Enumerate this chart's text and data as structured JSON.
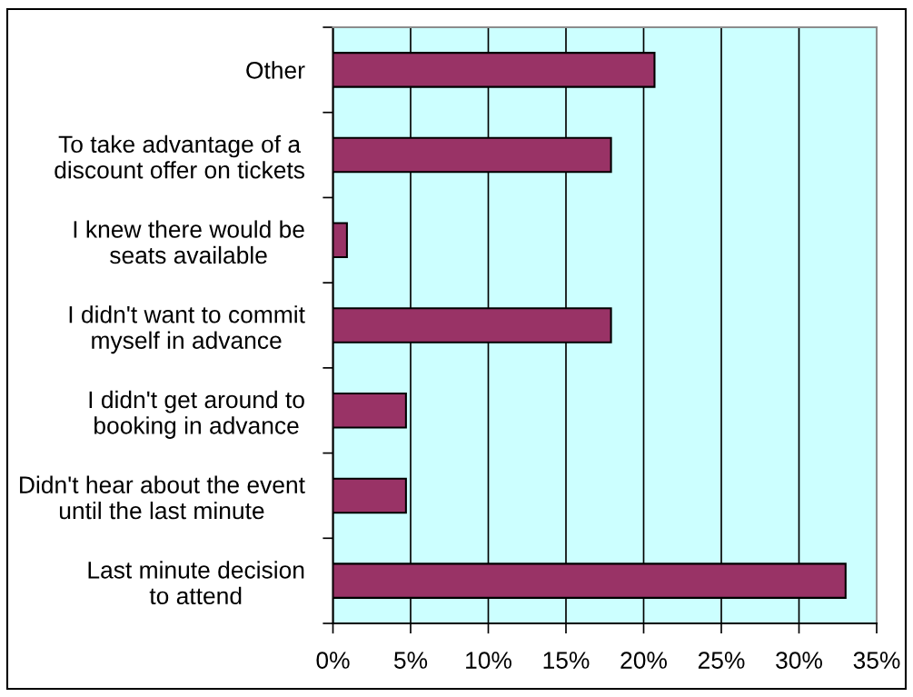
{
  "chart_data": {
    "type": "bar",
    "orientation": "horizontal",
    "categories": [
      "Other",
      "To take advantage of a\ndiscount offer on tickets",
      "I knew there would be\nseats available",
      "I didn't want to commit\nmyself in advance",
      "I didn't get around to\nbooking in advance",
      "Didn't hear about the event\nuntil the last minute",
      "Last minute decision\nto attend"
    ],
    "values": [
      20.7,
      17.9,
      0.9,
      17.9,
      4.7,
      4.7,
      33.0
    ],
    "color": "#993366",
    "xlim": [
      0,
      35
    ],
    "xticks": [
      {
        "value": 0,
        "label": "0%"
      },
      {
        "value": 5,
        "label": "5%"
      },
      {
        "value": 10,
        "label": "10%"
      },
      {
        "value": 15,
        "label": "15%"
      },
      {
        "value": 20,
        "label": "20%"
      },
      {
        "value": 25,
        "label": "25%"
      },
      {
        "value": 30,
        "label": "30%"
      },
      {
        "value": 35,
        "label": "35%"
      }
    ],
    "grid": "x"
  }
}
